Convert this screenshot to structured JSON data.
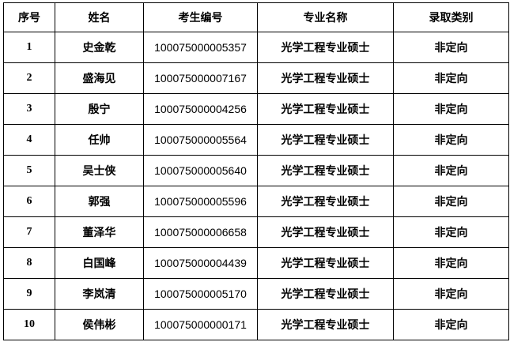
{
  "headers": [
    "序号",
    "姓名",
    "考生编号",
    "专业名称",
    "录取类别"
  ],
  "rows": [
    {
      "no": "1",
      "name": "史金乾",
      "id": "100075000005357",
      "major": "光学工程专业硕士",
      "type": "非定向"
    },
    {
      "no": "2",
      "name": "盛海见",
      "id": "100075000007167",
      "major": "光学工程专业硕士",
      "type": "非定向"
    },
    {
      "no": "3",
      "name": "殷宁",
      "id": "100075000004256",
      "major": "光学工程专业硕士",
      "type": "非定向"
    },
    {
      "no": "4",
      "name": "任帅",
      "id": "100075000005564",
      "major": "光学工程专业硕士",
      "type": "非定向"
    },
    {
      "no": "5",
      "name": "吴士侠",
      "id": "100075000005640",
      "major": "光学工程专业硕士",
      "type": "非定向"
    },
    {
      "no": "6",
      "name": "郭强",
      "id": "100075000005596",
      "major": "光学工程专业硕士",
      "type": "非定向"
    },
    {
      "no": "7",
      "name": "董泽华",
      "id": "100075000006658",
      "major": "光学工程专业硕士",
      "type": "非定向"
    },
    {
      "no": "8",
      "name": "白国峰",
      "id": "100075000004439",
      "major": "光学工程专业硕士",
      "type": "非定向"
    },
    {
      "no": "9",
      "name": "李岚清",
      "id": "100075000005170",
      "major": "光学工程专业硕士",
      "type": "非定向"
    },
    {
      "no": "10",
      "name": "侯伟彬",
      "id": "100075000000171",
      "major": "光学工程专业硕士",
      "type": "非定向"
    }
  ]
}
